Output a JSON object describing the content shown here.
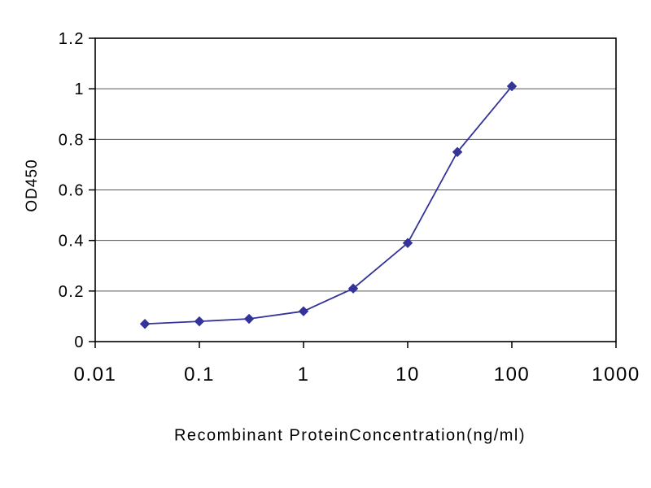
{
  "chart_data": {
    "type": "line",
    "title": "",
    "xlabel": "Recombinant ProteinConcentration(ng/ml)",
    "ylabel": "OD450",
    "x_scale": "log",
    "xlim": [
      0.01,
      1000
    ],
    "ylim": [
      0,
      1.2
    ],
    "x": [
      0.03,
      0.1,
      0.3,
      1,
      3,
      10,
      30,
      100
    ],
    "y": [
      0.07,
      0.08,
      0.09,
      0.12,
      0.21,
      0.39,
      0.75,
      1.01
    ],
    "x_ticks": [
      "0.01",
      "0.1",
      "1",
      "10",
      "100",
      "1000"
    ],
    "x_tick_values": [
      0.01,
      0.1,
      1,
      10,
      100,
      1000
    ],
    "y_ticks": [
      "0",
      "0.2",
      "0.4",
      "0.6",
      "0.8",
      "1",
      "1.2"
    ],
    "y_tick_values": [
      0,
      0.2,
      0.4,
      0.6,
      0.8,
      1,
      1.2
    ],
    "grid": "horizontal",
    "grid_color": "#595959",
    "axis_color": "#000000",
    "line_color": "#333399",
    "marker": "diamond",
    "marker_color": "#333399",
    "legend": "none",
    "background": "#ffffff"
  }
}
